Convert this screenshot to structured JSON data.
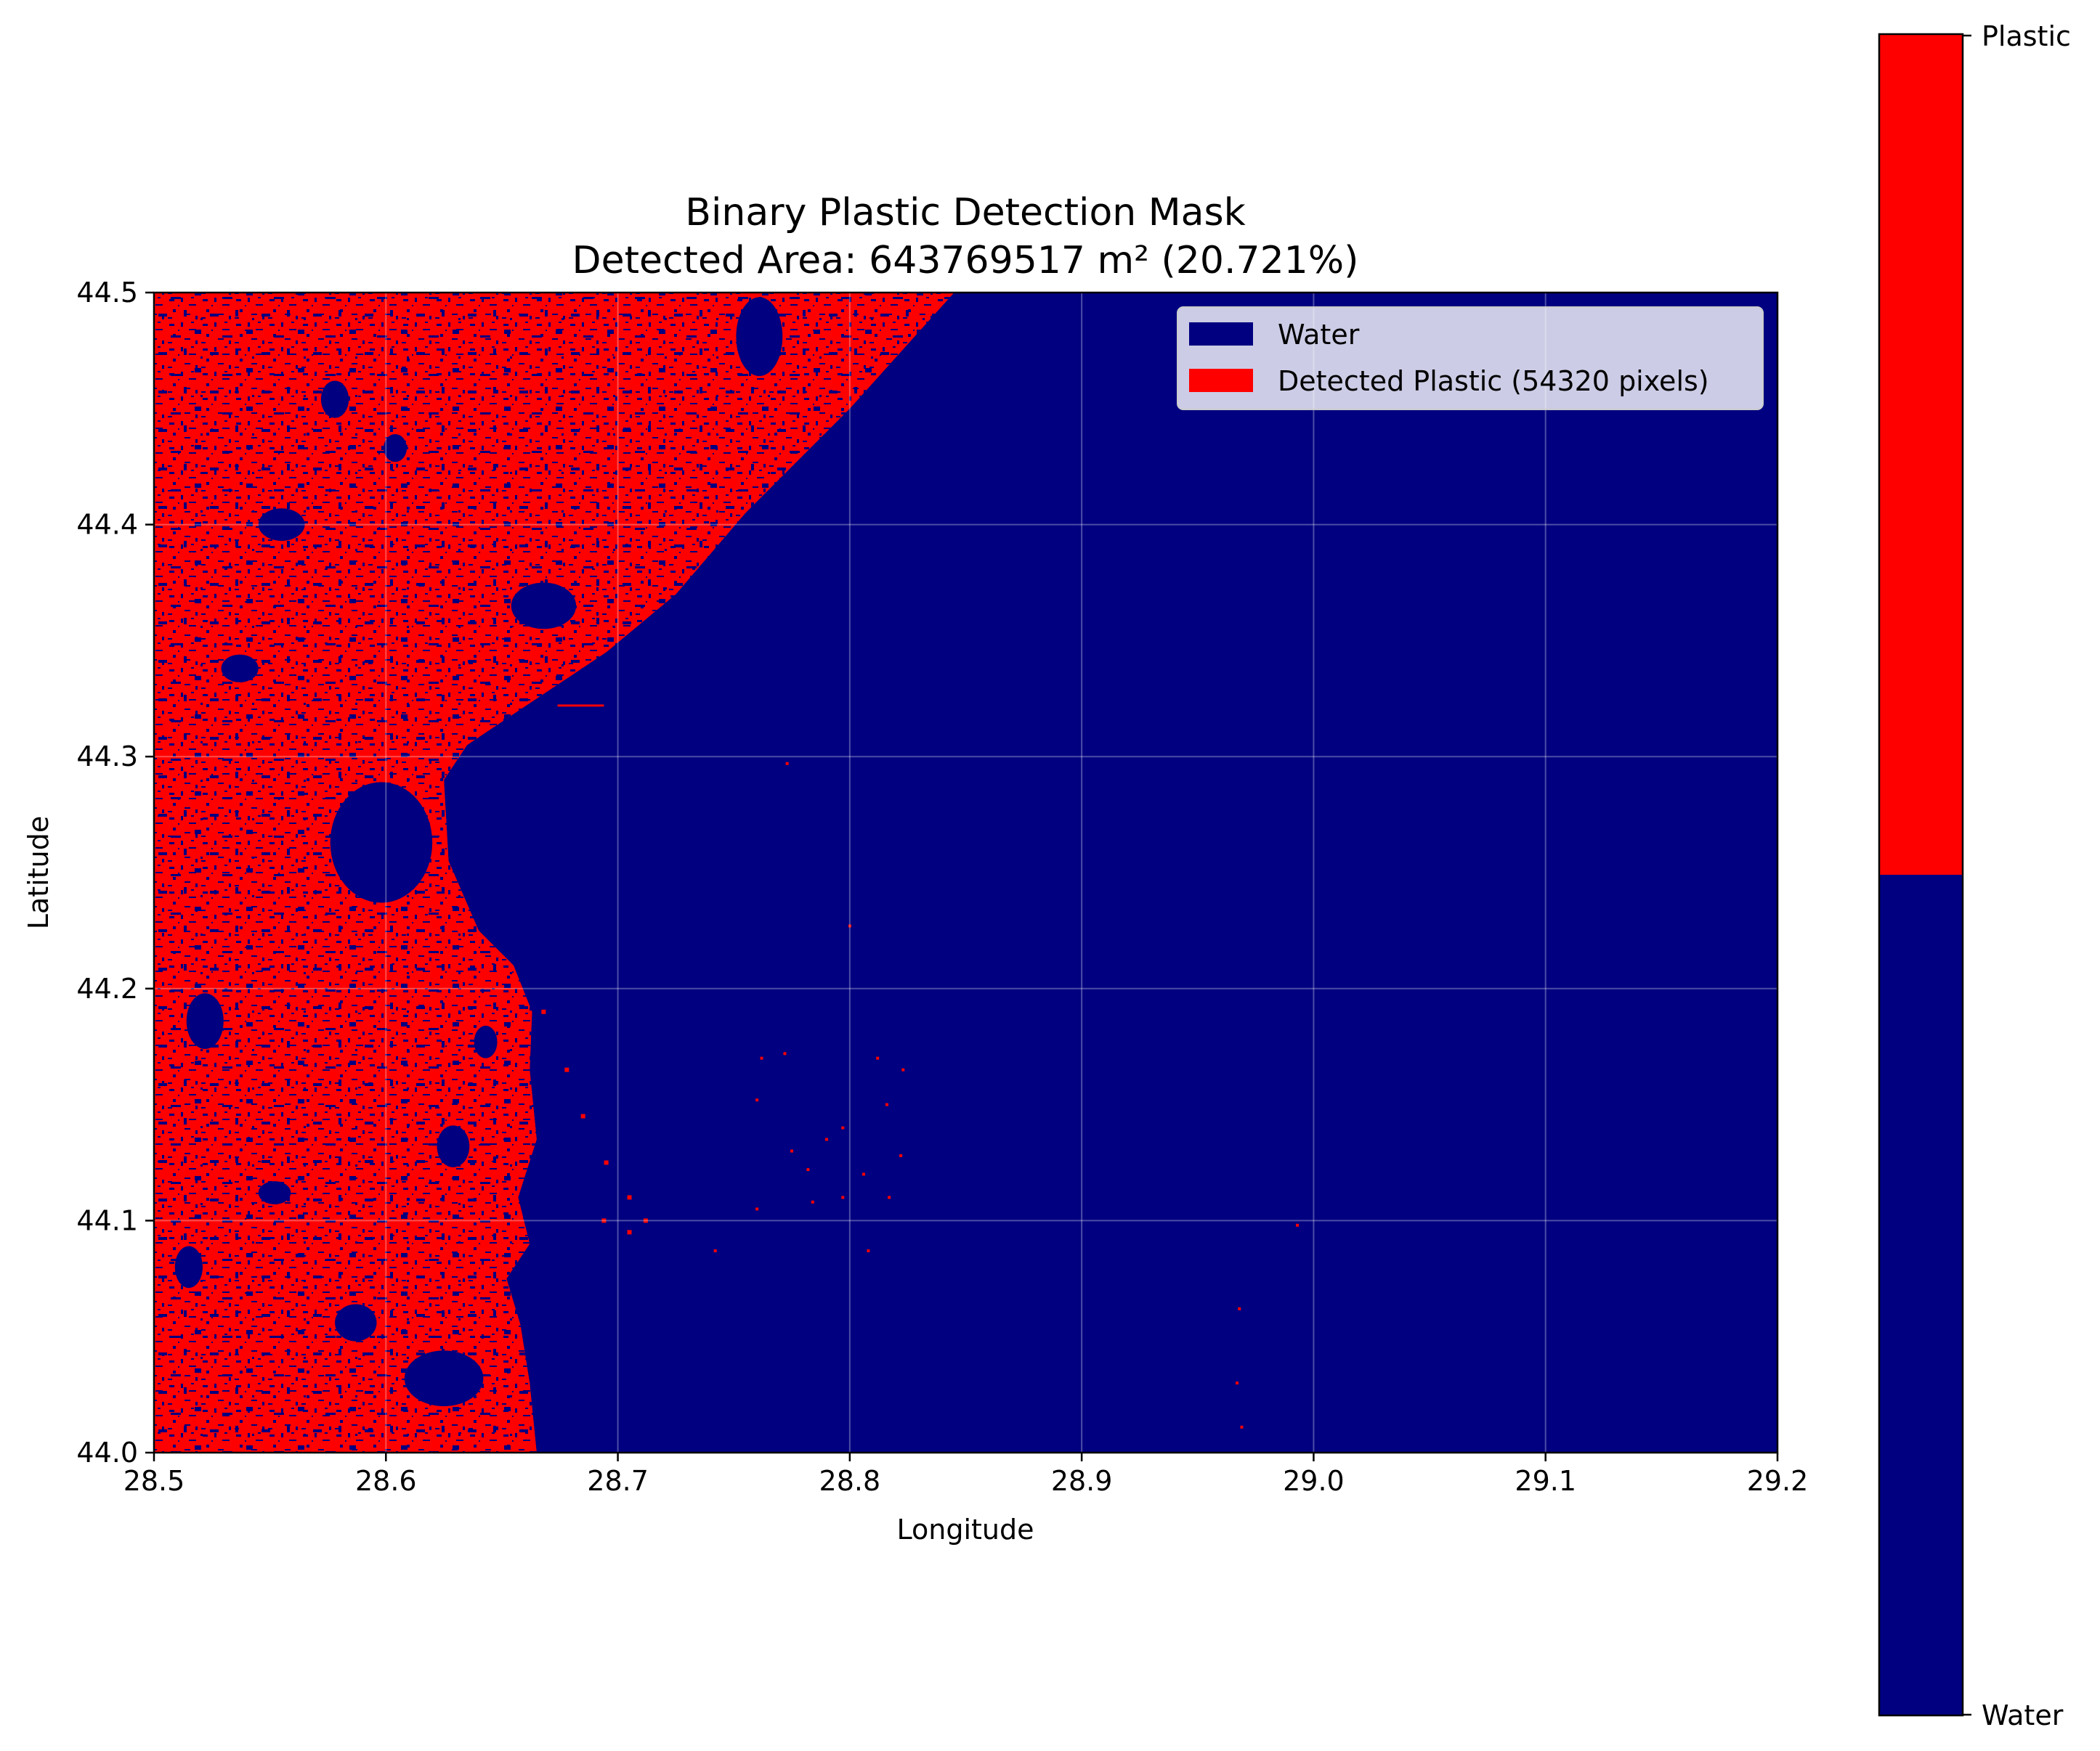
{
  "chart_data": {
    "type": "heatmap",
    "title": "Binary Plastic Detection Mask\nDetected Area: 643769517 m² (20.721%)",
    "title_lines": [
      "Binary Plastic Detection Mask",
      "Detected Area: 643769517 m² (20.721%)"
    ],
    "xlabel": "Longitude",
    "ylabel": "Latitude",
    "xlim": [
      28.5,
      29.2
    ],
    "ylim": [
      44.0,
      44.5
    ],
    "xticks": [
      "28.5",
      "28.6",
      "28.7",
      "28.8",
      "28.9",
      "29.0",
      "29.1",
      "29.2"
    ],
    "yticks": [
      "44.0",
      "44.1",
      "44.2",
      "44.3",
      "44.4",
      "44.5"
    ],
    "grid": true,
    "legend_position": "top-right",
    "classes": [
      {
        "value": 0,
        "name": "Water",
        "color": "#000080"
      },
      {
        "value": 1,
        "name": "Plastic",
        "color": "#ff0000"
      }
    ],
    "legend": [
      {
        "label": "Water",
        "color": "#000080"
      },
      {
        "label": "Detected Plastic (54320 pixels)",
        "color": "#ff0000"
      }
    ],
    "colorbar": {
      "ticks": [
        "Water",
        "Plastic"
      ],
      "boundary_fraction": 0.5
    },
    "coastline": [
      [
        28.5,
        44.5
      ],
      [
        28.845,
        44.5
      ],
      [
        28.8,
        44.45
      ],
      [
        28.755,
        44.405
      ],
      [
        28.725,
        44.37
      ],
      [
        28.695,
        44.345
      ],
      [
        28.665,
        44.325
      ],
      [
        28.635,
        44.305
      ],
      [
        28.625,
        44.29
      ],
      [
        28.627,
        44.255
      ],
      [
        28.64,
        44.225
      ],
      [
        28.655,
        44.21
      ],
      [
        28.663,
        44.19
      ],
      [
        28.662,
        44.165
      ],
      [
        28.665,
        44.135
      ],
      [
        28.657,
        44.11
      ],
      [
        28.662,
        44.09
      ],
      [
        28.652,
        44.075
      ],
      [
        28.658,
        44.055
      ],
      [
        28.662,
        44.03
      ],
      [
        28.665,
        44.0
      ],
      [
        28.5,
        44.0
      ]
    ],
    "inland_water_bodies": [
      {
        "lon": 28.761,
        "lat": 44.481,
        "rlon": 0.01,
        "rlat": 0.017
      },
      {
        "lon": 28.668,
        "lat": 44.365,
        "rlon": 0.014,
        "rlat": 0.01
      },
      {
        "lon": 28.598,
        "lat": 44.263,
        "rlon": 0.022,
        "rlat": 0.026
      },
      {
        "lon": 28.625,
        "lat": 44.032,
        "rlon": 0.017,
        "rlat": 0.012
      },
      {
        "lon": 28.587,
        "lat": 44.056,
        "rlon": 0.009,
        "rlat": 0.008
      },
      {
        "lon": 28.522,
        "lat": 44.186,
        "rlon": 0.008,
        "rlat": 0.012
      },
      {
        "lon": 28.555,
        "lat": 44.4,
        "rlon": 0.01,
        "rlat": 0.007
      },
      {
        "lon": 28.537,
        "lat": 44.338,
        "rlon": 0.008,
        "rlat": 0.006
      },
      {
        "lon": 28.629,
        "lat": 44.132,
        "rlon": 0.007,
        "rlat": 0.009
      },
      {
        "lon": 28.578,
        "lat": 44.454,
        "rlon": 0.006,
        "rlat": 0.008
      },
      {
        "lon": 28.552,
        "lat": 44.112,
        "rlon": 0.007,
        "rlat": 0.005
      },
      {
        "lon": 28.604,
        "lat": 44.433,
        "rlon": 0.005,
        "rlat": 0.006
      },
      {
        "lon": 28.643,
        "lat": 44.177,
        "rlon": 0.005,
        "rlat": 0.007
      },
      {
        "lon": 28.515,
        "lat": 44.08,
        "rlon": 0.006,
        "rlat": 0.009
      }
    ],
    "isolated_detections": [
      [
        28.762,
        44.17
      ],
      [
        28.772,
        44.172
      ],
      [
        28.76,
        44.152
      ],
      [
        28.775,
        44.13
      ],
      [
        28.782,
        44.122
      ],
      [
        28.76,
        44.105
      ],
      [
        28.784,
        44.108
      ],
      [
        28.797,
        44.14
      ],
      [
        28.806,
        44.12
      ],
      [
        28.817,
        44.11
      ],
      [
        28.816,
        44.15
      ],
      [
        28.823,
        44.165
      ],
      [
        28.822,
        44.128
      ],
      [
        28.797,
        44.11
      ],
      [
        28.808,
        44.087
      ],
      [
        28.742,
        44.087
      ],
      [
        28.993,
        44.098
      ],
      [
        28.968,
        44.062
      ],
      [
        28.967,
        44.03
      ],
      [
        28.969,
        44.011
      ],
      [
        28.8,
        44.227
      ],
      [
        28.773,
        44.297
      ],
      [
        28.812,
        44.17
      ],
      [
        28.79,
        44.135
      ]
    ],
    "coastal_debris_trail": [
      [
        28.668,
        44.19
      ],
      [
        28.678,
        44.165
      ],
      [
        28.685,
        44.145
      ],
      [
        28.695,
        44.125
      ],
      [
        28.705,
        44.11
      ],
      [
        28.712,
        44.1
      ],
      [
        28.694,
        44.1
      ],
      [
        28.705,
        44.095
      ]
    ],
    "pier_segment": [
      [
        28.674,
        44.322
      ],
      [
        28.694,
        44.322
      ]
    ]
  }
}
